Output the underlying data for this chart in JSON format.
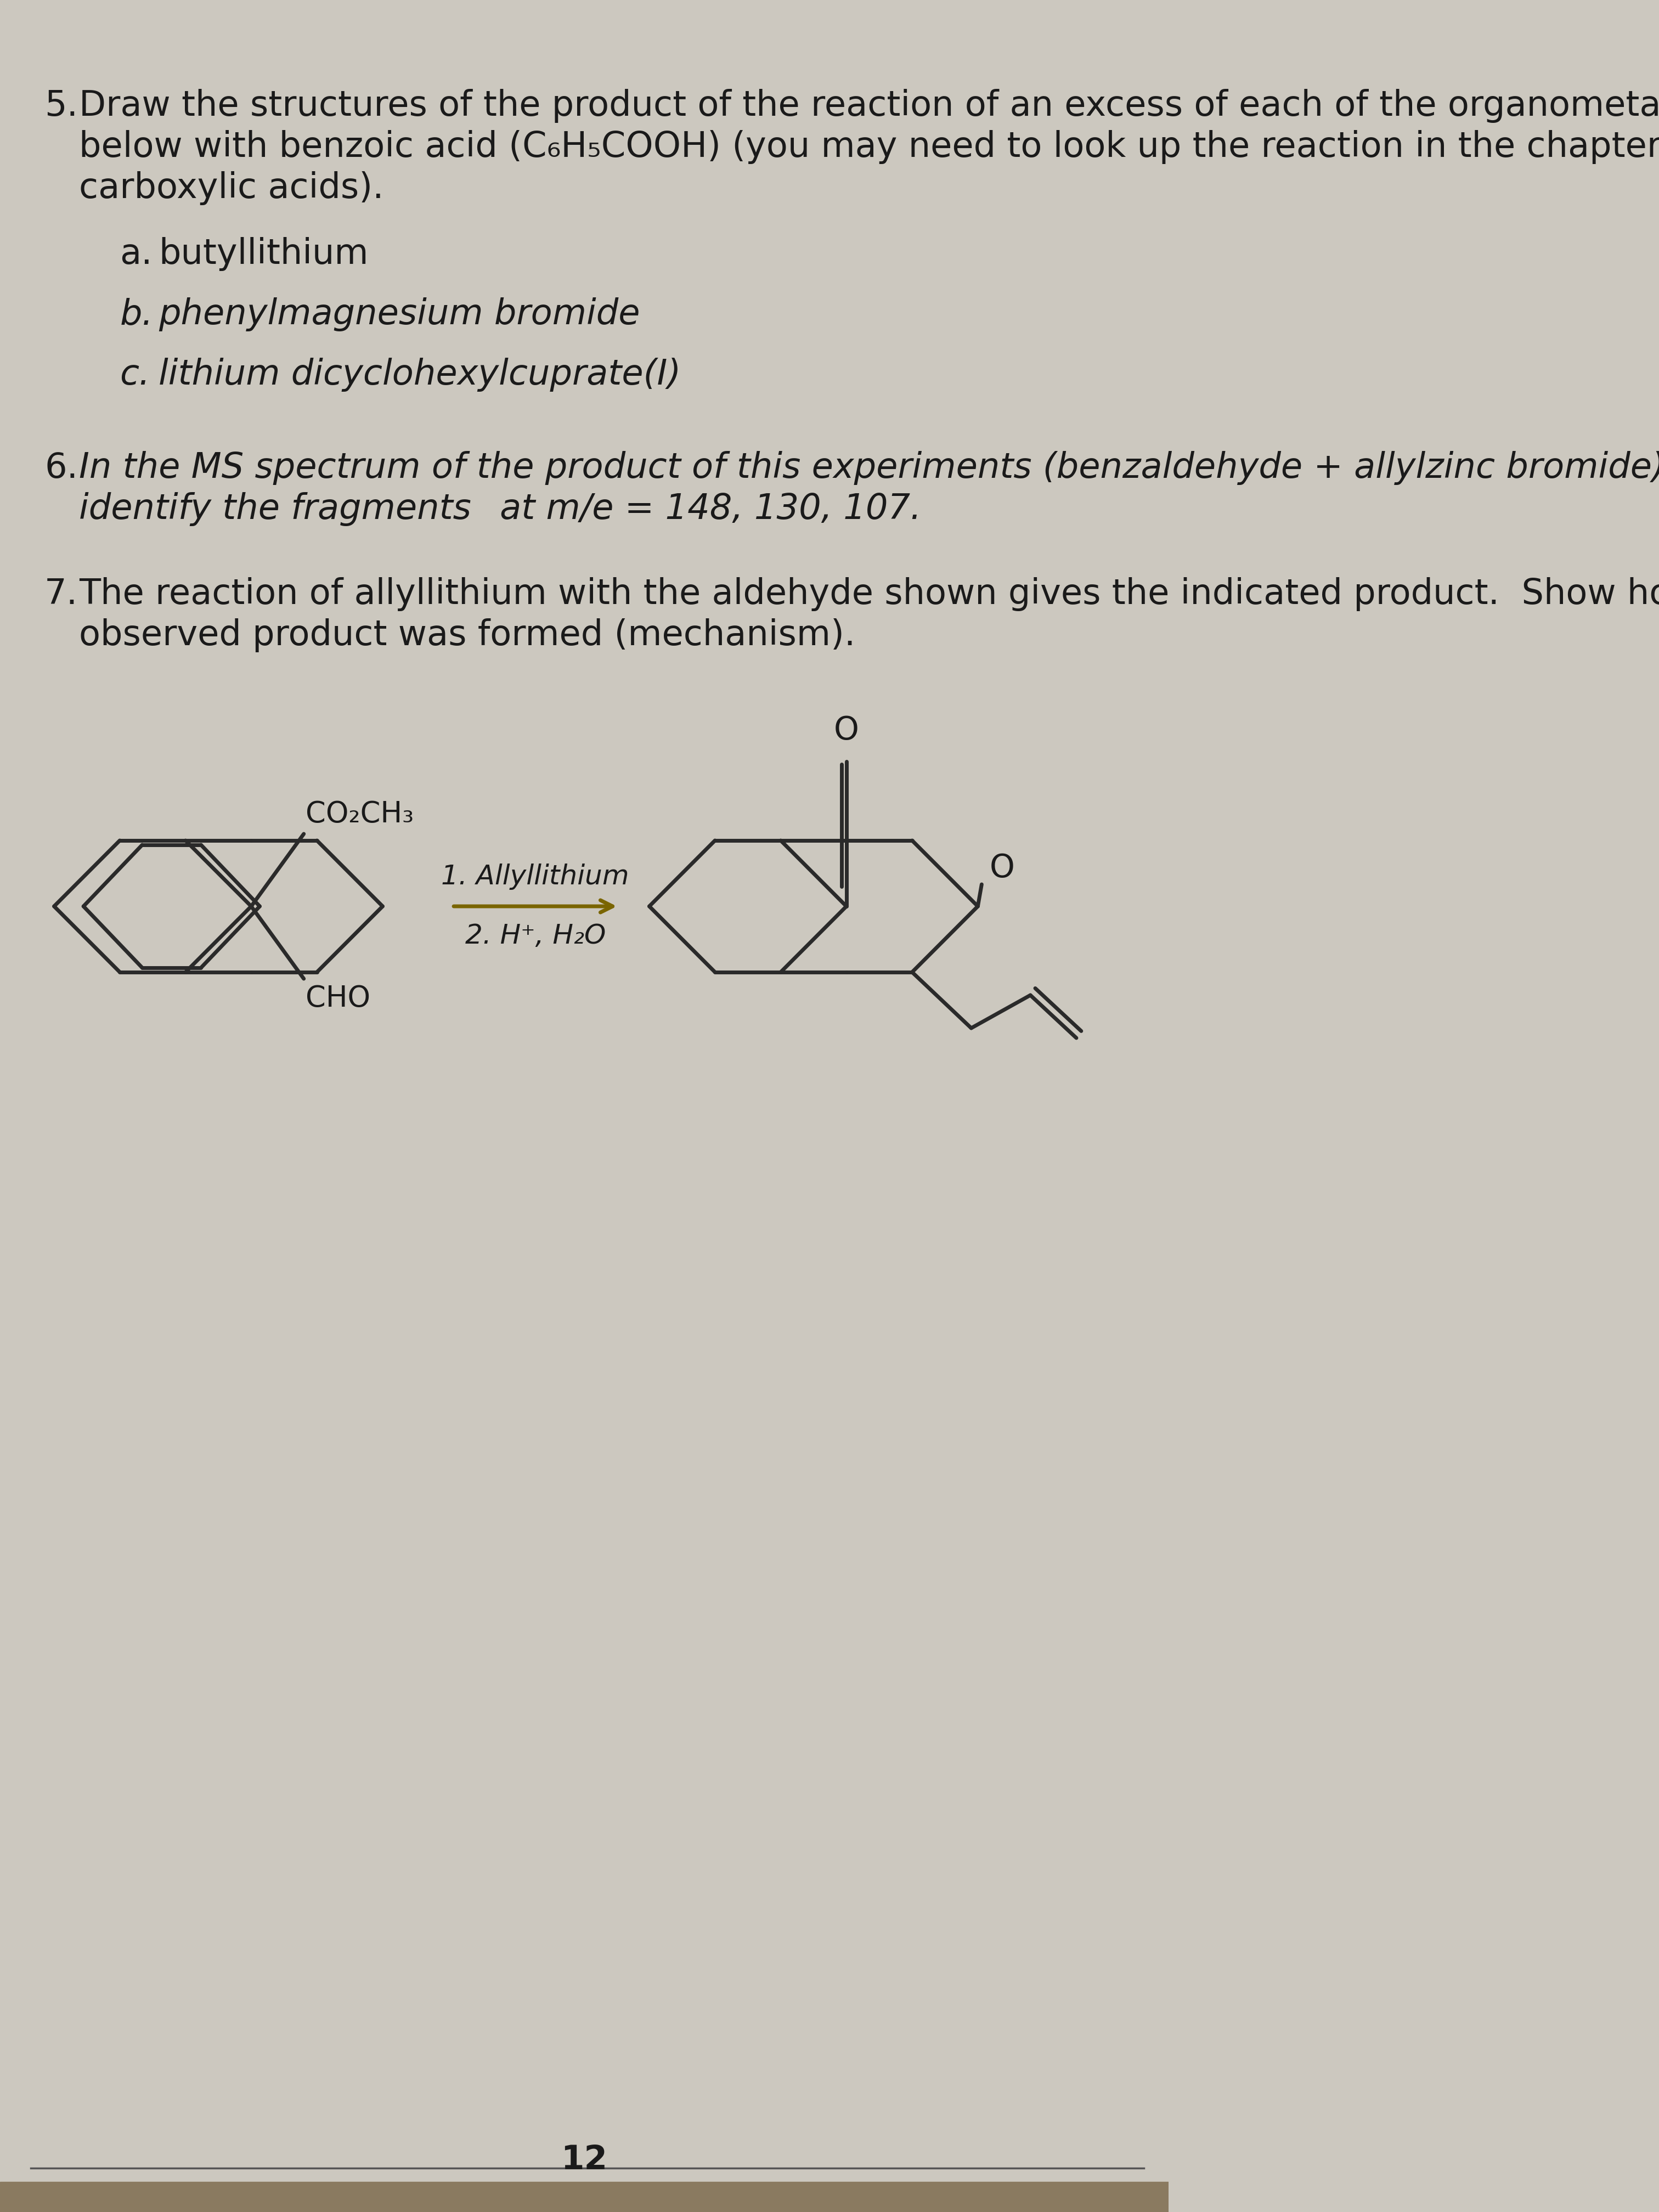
{
  "bg_color": "#ccc8bf",
  "text_color": "#1a1a1a",
  "arrow_color": "#7a6500",
  "line_color": "#2a2a2a",
  "font_size_main": 46,
  "font_size_label": 38,
  "font_size_reagent": 36,
  "font_size_page": 44,
  "reagent_1": "1. Allyllithium",
  "reagent_2": "2. H⁺, H₂O",
  "page_number": "12"
}
